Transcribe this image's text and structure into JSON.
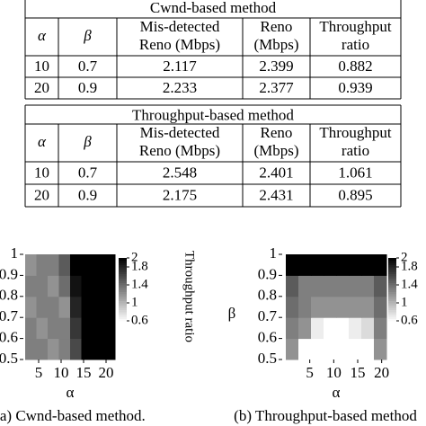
{
  "tables": [
    {
      "title": "Cwnd-based method",
      "header": [
        [
          "α"
        ],
        [
          "β"
        ],
        [
          "Mis-detected",
          "Reno (Mbps)"
        ],
        [
          "Reno",
          "(Mbps)"
        ],
        [
          "Throughput",
          "ratio"
        ]
      ],
      "rows": [
        [
          "10",
          "0.7",
          "2.117",
          "2.399",
          "0.882"
        ],
        [
          "20",
          "0.9",
          "2.233",
          "2.377",
          "0.939"
        ]
      ]
    },
    {
      "title": "Throughput-based method",
      "header": [
        [
          "α"
        ],
        [
          "β"
        ],
        [
          "Mis-detected",
          "Reno (Mbps)"
        ],
        [
          "Reno",
          "(Mbps)"
        ],
        [
          "Throughput",
          "ratio"
        ]
      ],
      "rows": [
        [
          "10",
          "0.7",
          "2.548",
          "2.401",
          "1.061"
        ],
        [
          "20",
          "0.9",
          "2.175",
          "2.431",
          "0.895"
        ]
      ]
    }
  ],
  "figures": [
    {
      "type": "heatmap",
      "caption": "(a) Cwnd-based method.",
      "xlabel": "α",
      "colorbar_label": "Throughput ratio",
      "xlim": [
        2,
        22
      ],
      "ylim": [
        0.5,
        1
      ],
      "xticks": [
        5,
        10,
        15,
        20
      ],
      "yticks": [
        0.5,
        0.6,
        0.7,
        0.8,
        0.9,
        1
      ],
      "clim": [
        0.6,
        2
      ],
      "cticks": [
        0.6,
        1,
        1.4,
        1.8,
        2
      ],
      "x": [
        3.25,
        5.75,
        8.25,
        10.75,
        13.25,
        15.75,
        18.25,
        20.75
      ],
      "y": [
        0.55,
        0.65,
        0.75,
        0.85,
        0.95
      ],
      "z": [
        [
          1.3,
          1.3,
          1.2,
          1.3,
          1.6,
          2,
          2,
          2
        ],
        [
          1.3,
          1.2,
          1.3,
          1.3,
          1.7,
          2,
          2,
          2
        ],
        [
          1.2,
          1.3,
          1.3,
          1.2,
          1.8,
          2,
          2,
          2
        ],
        [
          1.3,
          1.3,
          1.2,
          1.4,
          1.9,
          2,
          2,
          2
        ],
        [
          1.2,
          1.3,
          1.3,
          1.5,
          2,
          2,
          2,
          2
        ]
      ]
    },
    {
      "type": "heatmap",
      "caption": "(b) Throughput-based method",
      "xlabel": "α",
      "ylabel": "β",
      "xlim": [
        0,
        21
      ],
      "ylim": [
        0.5,
        1
      ],
      "xticks": [
        5,
        10,
        15,
        20
      ],
      "yticks": [
        0.5,
        0.6,
        0.7,
        0.8,
        0.9,
        1
      ],
      "clim": [
        0.6,
        2
      ],
      "cticks": [
        0.6,
        1,
        1.4,
        1.8,
        2
      ],
      "x": [
        1.3125,
        3.9375,
        6.5625,
        9.1875,
        11.8125,
        14.4375,
        17.0625,
        19.6875
      ],
      "y": [
        0.55,
        0.65,
        0.75,
        0.85,
        0.95
      ],
      "z": [
        [
          1.2,
          0.6,
          0.6,
          0.6,
          0.6,
          0.6,
          0.6,
          1.2
        ],
        [
          1.3,
          1.2,
          0.7,
          0.6,
          0.6,
          0.7,
          0.8,
          1.3
        ],
        [
          1.4,
          1.3,
          1.2,
          1.2,
          1.2,
          1.2,
          1.2,
          1.4
        ],
        [
          1.5,
          1.3,
          1.3,
          1.3,
          1.3,
          1.3,
          1.3,
          1.5
        ],
        [
          2,
          2,
          2,
          2,
          2,
          2,
          2,
          2
        ]
      ]
    }
  ]
}
